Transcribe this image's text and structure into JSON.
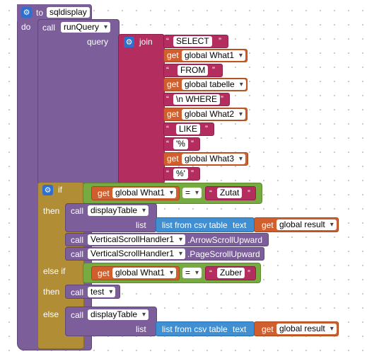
{
  "procedure": {
    "to_label": "to",
    "name": "sqldisplay",
    "do_label": "do"
  },
  "call_label": "call",
  "get_label": "get",
  "run_query": {
    "name": "runQuery",
    "arg_label": "query",
    "join_label": "join"
  },
  "join_items": [
    {
      "type": "text",
      "value": "SELECT"
    },
    {
      "type": "get",
      "value": "global What1"
    },
    {
      "type": "text",
      "value": "FROM"
    },
    {
      "type": "get",
      "value": "global tabelle"
    },
    {
      "type": "text",
      "value": "\\n WHERE"
    },
    {
      "type": "get",
      "value": "global What2"
    },
    {
      "type": "text",
      "value": "LIKE"
    },
    {
      "type": "text",
      "value": "'%"
    },
    {
      "type": "get",
      "value": "global What3"
    },
    {
      "type": "text",
      "value": "%'"
    }
  ],
  "if_block": {
    "if_label": "if",
    "then_label": "then",
    "elseif_label": "else if",
    "else_label": "else",
    "cond1": {
      "var": "global What1",
      "op": "=",
      "value": "Zutat"
    },
    "cond2": {
      "var": "global What1",
      "op": "=",
      "value": "Zuber"
    }
  },
  "display_table": {
    "name": "displayTable",
    "arg_label": "list"
  },
  "list_from_csv": {
    "label": "list from csv table",
    "text_label": "text",
    "var": "global result"
  },
  "scroll_arrow": {
    "component": "VerticalScrollHandler1",
    "method": ".ArrowScrollUpward"
  },
  "scroll_page": {
    "component": "VerticalScrollHandler1",
    "method": ".PageScrollUpward"
  },
  "test_call": {
    "name": "test"
  },
  "icons": {
    "gear": "gear-icon",
    "dropdown": "chevron-down-icon"
  },
  "colors": {
    "procedure": "#7b5e9a",
    "text": "#b32d5e",
    "variable": "#d05f2d",
    "control": "#b18e35",
    "logic": "#77ab41",
    "list": "#3f8fd2",
    "mutator": "#2f6fd0"
  }
}
